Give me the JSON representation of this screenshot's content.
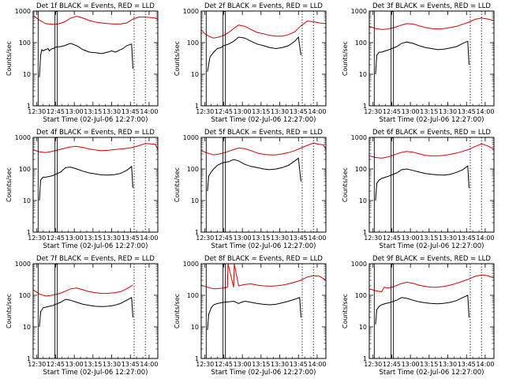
{
  "colors": {
    "events": "#000000",
    "lld": "#dd0000",
    "axes": "#000000",
    "background": "#ffffff"
  },
  "common": {
    "ylabel": "Counts/sec",
    "xlabel": "Start Time (02-Jul-06 12:27:00)",
    "y_ticks": [
      "1",
      "10",
      "100",
      "1000"
    ],
    "x_ticks": [
      "12:30",
      "12:45",
      "13:00",
      "13:15",
      "13:30",
      "13:45",
      "14:00"
    ]
  },
  "chart_data": [
    {
      "type": "line",
      "title": "Det 1f BLACK = Events, RED = LLD",
      "yscale": "log",
      "ylim": [
        1,
        1000
      ],
      "xlim_minutes": [
        0,
        100
      ],
      "markers": {
        "E_start": 4,
        "F": 17.5,
        "E_end": 81,
        "dotted_end": 90
      },
      "series": [
        {
          "color": "#000000",
          "x": [
            5,
            6,
            7,
            8,
            9,
            10,
            11,
            12,
            13,
            14,
            15,
            16,
            17,
            18,
            22,
            25,
            30,
            35,
            40,
            45,
            50,
            55,
            60,
            63,
            66,
            70,
            72,
            75,
            79,
            80
          ],
          "y": [
            8,
            40,
            60,
            55,
            58,
            60,
            62,
            65,
            55,
            60,
            64,
            65,
            68,
            72,
            75,
            80,
            95,
            80,
            60,
            50,
            48,
            45,
            50,
            55,
            50,
            60,
            65,
            80,
            90,
            15
          ]
        },
        {
          "color": "#dd0000",
          "x": [
            0,
            5,
            10,
            15,
            20,
            25,
            30,
            35,
            40,
            45,
            50,
            55,
            60,
            65,
            70,
            75,
            80,
            85,
            90,
            95,
            98,
            100
          ],
          "y": [
            720,
            520,
            400,
            380,
            390,
            450,
            600,
            680,
            600,
            500,
            450,
            420,
            400,
            390,
            390,
            420,
            560,
            650,
            640,
            620,
            600,
            540
          ]
        }
      ]
    },
    {
      "type": "line",
      "title": "Det 2f BLACK = Events, RED = LLD",
      "yscale": "log",
      "ylim": [
        1,
        1000
      ],
      "xlim_minutes": [
        0,
        100
      ],
      "markers": {
        "E_start": 4,
        "F": 17.5,
        "E_end": 81,
        "dotted_end": 90
      },
      "series": [
        {
          "color": "#000000",
          "x": [
            5,
            7,
            10,
            13,
            16,
            18,
            22,
            26,
            30,
            35,
            40,
            45,
            50,
            55,
            60,
            65,
            70,
            75,
            78,
            80
          ],
          "y": [
            12,
            35,
            50,
            65,
            70,
            80,
            90,
            110,
            150,
            140,
            110,
            90,
            80,
            70,
            65,
            70,
            80,
            110,
            150,
            40
          ]
        },
        {
          "color": "#dd0000",
          "x": [
            0,
            3,
            6,
            10,
            14,
            18,
            22,
            26,
            30,
            35,
            40,
            45,
            50,
            55,
            60,
            65,
            70,
            75,
            80,
            85,
            90,
            95,
            100
          ],
          "y": [
            260,
            190,
            160,
            140,
            150,
            170,
            210,
            280,
            360,
            330,
            260,
            210,
            190,
            170,
            160,
            160,
            180,
            220,
            340,
            480,
            460,
            420,
            400
          ]
        }
      ]
    },
    {
      "type": "line",
      "title": "Det 3f BLACK = Events, RED = LLD",
      "yscale": "log",
      "ylim": [
        1,
        1000
      ],
      "xlim_minutes": [
        0,
        100
      ],
      "markers": {
        "E_start": 4,
        "F": 17.5,
        "E_end": 81,
        "dotted_end": 90
      },
      "series": [
        {
          "color": "#000000",
          "x": [
            5,
            6,
            8,
            10,
            13,
            16,
            18,
            22,
            26,
            30,
            35,
            40,
            45,
            50,
            55,
            60,
            65,
            70,
            75,
            79,
            80
          ],
          "y": [
            10,
            40,
            50,
            50,
            55,
            60,
            65,
            75,
            95,
            105,
            95,
            80,
            70,
            65,
            60,
            62,
            68,
            75,
            95,
            110,
            20
          ]
        },
        {
          "color": "#dd0000",
          "x": [
            0,
            5,
            10,
            15,
            20,
            25,
            30,
            35,
            40,
            45,
            50,
            55,
            60,
            65,
            70,
            75,
            80,
            85,
            90,
            95,
            100
          ],
          "y": [
            330,
            280,
            260,
            270,
            300,
            350,
            400,
            390,
            340,
            300,
            280,
            270,
            280,
            300,
            330,
            380,
            450,
            550,
            600,
            560,
            500
          ]
        }
      ]
    },
    {
      "type": "line",
      "title": "Det 4f BLACK = Events, RED = LLD",
      "yscale": "log",
      "ylim": [
        1,
        1000
      ],
      "xlim_minutes": [
        0,
        100
      ],
      "markers": {
        "E_start": 4,
        "F": 17.5,
        "E_end": 81,
        "dotted_end": 90
      },
      "series": [
        {
          "color": "#000000",
          "x": [
            5,
            6,
            8,
            10,
            13,
            16,
            18,
            22,
            26,
            30,
            35,
            40,
            45,
            50,
            55,
            60,
            65,
            70,
            75,
            79,
            80
          ],
          "y": [
            10,
            45,
            55,
            55,
            58,
            62,
            68,
            80,
            110,
            115,
            100,
            85,
            75,
            70,
            65,
            64,
            66,
            72,
            90,
            120,
            25
          ]
        },
        {
          "color": "#dd0000",
          "x": [
            0,
            5,
            10,
            15,
            20,
            25,
            30,
            35,
            40,
            45,
            50,
            55,
            60,
            65,
            70,
            75,
            80,
            85,
            90,
            95,
            98,
            100
          ],
          "y": [
            400,
            350,
            330,
            360,
            400,
            450,
            500,
            520,
            480,
            430,
            400,
            380,
            390,
            410,
            430,
            450,
            480,
            550,
            640,
            620,
            600,
            420
          ]
        }
      ]
    },
    {
      "type": "line",
      "title": "Det 5f BLACK = Events, RED = LLD",
      "yscale": "log",
      "ylim": [
        1,
        1000
      ],
      "xlim_minutes": [
        0,
        100
      ],
      "markers": {
        "E_start": 4,
        "F": 17.5,
        "E_end": 81,
        "dotted_end": 90
      },
      "series": [
        {
          "color": "#000000",
          "x": [
            5,
            6,
            8,
            10,
            13,
            16,
            18,
            22,
            26,
            30,
            35,
            40,
            45,
            50,
            55,
            60,
            65,
            70,
            75,
            78,
            80
          ],
          "y": [
            20,
            60,
            80,
            100,
            130,
            150,
            160,
            170,
            200,
            180,
            140,
            120,
            110,
            100,
            95,
            100,
            110,
            130,
            180,
            220,
            40
          ]
        },
        {
          "color": "#dd0000",
          "x": [
            0,
            5,
            10,
            15,
            20,
            25,
            30,
            35,
            40,
            45,
            50,
            55,
            60,
            65,
            70,
            75,
            80,
            85,
            90,
            95,
            98,
            100
          ],
          "y": [
            380,
            320,
            280,
            300,
            340,
            400,
            460,
            440,
            380,
            320,
            290,
            280,
            280,
            300,
            330,
            380,
            460,
            560,
            660,
            600,
            580,
            420
          ]
        }
      ]
    },
    {
      "type": "line",
      "title": "Det 6f BLACK = Events, RED = LLD",
      "yscale": "log",
      "ylim": [
        1,
        1000
      ],
      "xlim_minutes": [
        0,
        100
      ],
      "markers": {
        "E_start": 4,
        "F": 17.5,
        "E_end": 81,
        "dotted_end": 90
      },
      "series": [
        {
          "color": "#000000",
          "x": [
            5,
            6,
            8,
            10,
            13,
            16,
            18,
            22,
            26,
            30,
            35,
            40,
            45,
            50,
            55,
            60,
            65,
            70,
            75,
            79,
            80
          ],
          "y": [
            10,
            35,
            45,
            50,
            55,
            60,
            65,
            75,
            95,
            100,
            90,
            80,
            72,
            68,
            65,
            64,
            68,
            78,
            95,
            125,
            25
          ]
        },
        {
          "color": "#dd0000",
          "x": [
            0,
            5,
            10,
            15,
            20,
            25,
            30,
            35,
            40,
            45,
            50,
            55,
            60,
            65,
            70,
            75,
            80,
            85,
            90,
            95,
            100
          ],
          "y": [
            260,
            230,
            220,
            240,
            280,
            330,
            360,
            340,
            300,
            270,
            260,
            260,
            270,
            290,
            320,
            360,
            420,
            520,
            620,
            540,
            420
          ]
        }
      ]
    },
    {
      "type": "line",
      "title": "Det 7f BLACK = Events, RED = LLD",
      "yscale": "log",
      "ylim": [
        1,
        1000
      ],
      "xlim_minutes": [
        0,
        100
      ],
      "markers": {
        "E_start": 4,
        "F": 17.5,
        "E_end": 81,
        "dotted_end": 90
      },
      "series": [
        {
          "color": "#000000",
          "x": [
            5,
            6,
            8,
            10,
            13,
            16,
            18,
            22,
            26,
            30,
            35,
            40,
            45,
            50,
            55,
            60,
            65,
            70,
            75,
            79,
            80
          ],
          "y": [
            10,
            30,
            40,
            42,
            45,
            48,
            52,
            60,
            75,
            70,
            60,
            52,
            48,
            45,
            44,
            45,
            48,
            55,
            70,
            85,
            20
          ]
        },
        {
          "color": "#dd0000",
          "x": [
            0,
            5,
            10,
            15,
            20,
            25,
            30,
            35,
            40,
            45,
            50,
            55,
            60,
            65,
            70,
            75,
            80
          ],
          "y": [
            150,
            110,
            95,
            100,
            110,
            130,
            160,
            170,
            150,
            130,
            120,
            115,
            115,
            120,
            130,
            160,
            210
          ]
        }
      ]
    },
    {
      "type": "line",
      "title": "Det 8f BLACK = Events, RED = LLD",
      "yscale": "log",
      "ylim": [
        1,
        1000
      ],
      "xlim_minutes": [
        0,
        100
      ],
      "markers": {
        "E_start": 4,
        "F": 17.5,
        "E_end": 81,
        "dotted_end": 90
      },
      "series": [
        {
          "color": "#000000",
          "x": [
            5,
            6,
            8,
            10,
            13,
            16,
            18,
            22,
            26,
            30,
            32,
            35,
            40,
            45,
            50,
            55,
            60,
            65,
            70,
            75,
            79,
            80
          ],
          "y": [
            8,
            25,
            40,
            50,
            55,
            58,
            60,
            62,
            65,
            55,
            60,
            65,
            60,
            55,
            52,
            50,
            52,
            58,
            65,
            75,
            85,
            20
          ]
        },
        {
          "color": "#dd0000",
          "x": [
            0,
            5,
            10,
            15,
            18,
            21,
            21.5,
            26,
            26.5,
            30,
            35,
            40,
            45,
            50,
            55,
            60,
            65,
            70,
            75,
            80,
            85,
            90,
            95,
            100
          ],
          "y": [
            210,
            180,
            160,
            165,
            170,
            180,
            1000,
            180,
            1000,
            200,
            220,
            230,
            210,
            200,
            195,
            200,
            210,
            230,
            260,
            300,
            380,
            420,
            400,
            300
          ]
        }
      ]
    },
    {
      "type": "line",
      "title": "Det 9f BLACK = Events, RED = LLD",
      "yscale": "log",
      "ylim": [
        1,
        1000
      ],
      "xlim_minutes": [
        0,
        100
      ],
      "markers": {
        "E_start": 4,
        "F": 17.5,
        "E_end": 81,
        "dotted_end": 90
      },
      "series": [
        {
          "color": "#000000",
          "x": [
            5,
            6,
            8,
            10,
            13,
            16,
            18,
            22,
            26,
            30,
            35,
            40,
            45,
            50,
            55,
            60,
            65,
            70,
            75,
            79,
            80
          ],
          "y": [
            12,
            35,
            45,
            50,
            55,
            58,
            62,
            70,
            85,
            80,
            70,
            62,
            58,
            55,
            54,
            56,
            60,
            68,
            85,
            100,
            20
          ]
        },
        {
          "color": "#dd0000",
          "x": [
            0,
            5,
            10,
            12,
            15,
            20,
            25,
            30,
            35,
            40,
            45,
            50,
            55,
            60,
            65,
            70,
            75,
            80,
            85,
            90,
            95,
            100
          ],
          "y": [
            160,
            140,
            130,
            180,
            170,
            190,
            230,
            260,
            240,
            210,
            190,
            180,
            180,
            190,
            210,
            240,
            280,
            330,
            400,
            440,
            420,
            350
          ]
        }
      ]
    }
  ]
}
